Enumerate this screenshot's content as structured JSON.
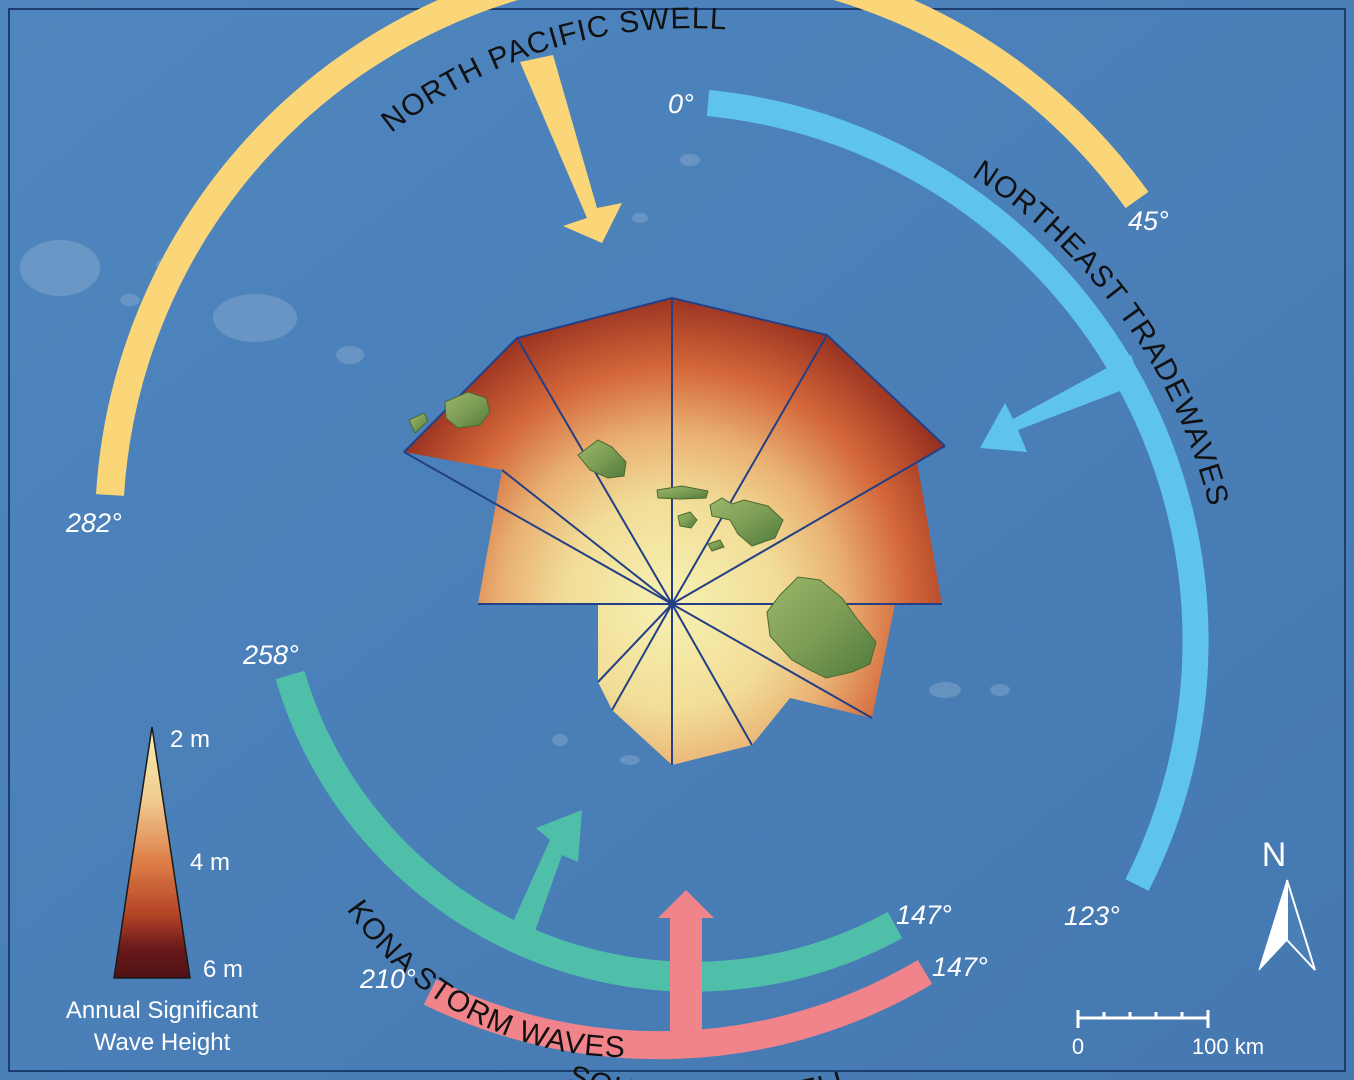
{
  "colors": {
    "ocean": "#4a7fb8",
    "north_pacific_swell": "#fbd679",
    "northeast_tradewaves": "#5ec4ef",
    "kona_storm_waves": "#4fbfaa",
    "southern_swell": "#f0848a",
    "radial_lines": "#233f86",
    "island_fill": "#7d9d55",
    "wave_low": "#f5ecac",
    "wave_mid": "#d4683a",
    "wave_high": "#5c1418"
  },
  "swells": {
    "north_pacific": {
      "label": "NORTH PACIFIC SWELL",
      "start_deg": "282°",
      "end_deg": "45°"
    },
    "northeast": {
      "label": "NORTHEAST TRADEWAVES",
      "start_deg": "0°",
      "end_deg": "123°"
    },
    "kona": {
      "label": "KONA STORM WAVES",
      "start_deg": "258°",
      "end_deg": "147°"
    },
    "southern": {
      "label": "SOUTHERN SWELL",
      "start_deg": "210°",
      "end_deg": "147°"
    }
  },
  "rose_sectors_wave_height_m": [
    {
      "direction": 0,
      "height": 6
    },
    {
      "direction": 30,
      "height": 6
    },
    {
      "direction": 60,
      "height": 6
    },
    {
      "direction": 90,
      "height": 5.5
    },
    {
      "direction": 120,
      "height": 4
    },
    {
      "direction": 150,
      "height": 2.5
    },
    {
      "direction": 180,
      "height": 2.5
    },
    {
      "direction": 210,
      "height": 2.5
    },
    {
      "direction": 240,
      "height": 2.5
    },
    {
      "direction": 270,
      "height": 4
    },
    {
      "direction": 300,
      "height": 6
    },
    {
      "direction": 330,
      "height": 6
    }
  ],
  "legend": {
    "min_label": "2 m",
    "mid_label": "4 m",
    "max_label": "6 m",
    "title_line1": "Annual Significant",
    "title_line2": "Wave Height"
  },
  "north_arrow": {
    "label": "N",
    "icon": "north-arrow-icon"
  },
  "scale_bar": {
    "start": "0",
    "end": "100 km"
  }
}
